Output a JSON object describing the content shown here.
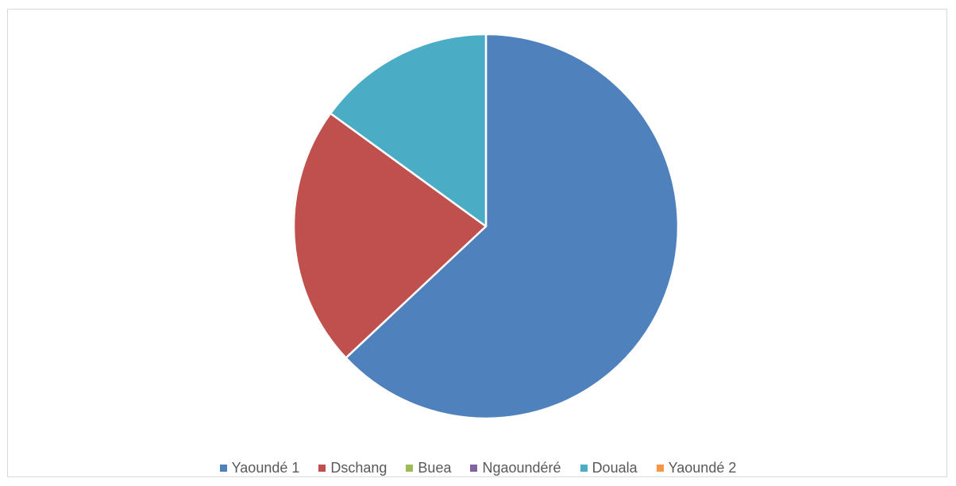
{
  "chart_data": {
    "type": "pie",
    "title": "",
    "categories": [
      "Yaoundé 1",
      "Dschang",
      "Buea",
      "Ngaoundéré",
      "Douala",
      "Yaoundé 2"
    ],
    "values": [
      63,
      22,
      0,
      0,
      15,
      0
    ],
    "colors": [
      "#4f81bd",
      "#c0504d",
      "#9bbb59",
      "#8064a2",
      "#4bacc6",
      "#f79646"
    ],
    "start_angle_deg": 0,
    "direction": "clockwise",
    "legend_position": "bottom"
  }
}
